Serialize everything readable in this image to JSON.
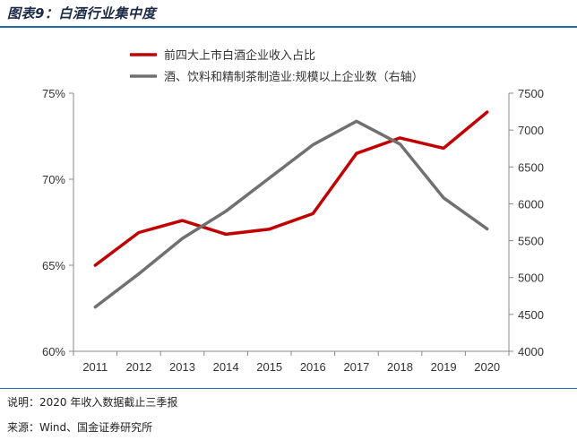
{
  "header": {
    "title": "图表9：白酒行业集中度"
  },
  "footer": {
    "note": "说明：2020 年收入数据截止三季报",
    "source": "来源：Wind、国金证券研究所"
  },
  "colors": {
    "series1": "#c00000",
    "series2": "#707070",
    "axis": "#888888",
    "rule": "#1f6bb5"
  },
  "chart_data": {
    "type": "line",
    "categories": [
      "2011",
      "2012",
      "2013",
      "2014",
      "2015",
      "2016",
      "2017",
      "2018",
      "2019",
      "2020"
    ],
    "y_left": {
      "ylim": [
        60,
        75
      ],
      "ticks": [
        "60%",
        "65%",
        "70%",
        "75%"
      ],
      "tick_values": [
        60,
        65,
        70,
        75
      ]
    },
    "y_right": {
      "ylim": [
        4000,
        7500
      ],
      "ticks": [
        "4000",
        "4500",
        "5000",
        "5500",
        "6000",
        "6500",
        "7000",
        "7500"
      ],
      "tick_values": [
        4000,
        4500,
        5000,
        5500,
        6000,
        6500,
        7000,
        7500
      ]
    },
    "series": [
      {
        "name": "前四大上市白酒企业收入占比",
        "axis": "left",
        "color": "#c00000",
        "values": [
          65.0,
          66.9,
          67.6,
          66.8,
          67.1,
          68.0,
          71.5,
          72.4,
          71.8,
          73.9
        ]
      },
      {
        "name": "酒、饮料和精制茶制造业:规模以上企业数（右轴）",
        "axis": "right",
        "color": "#707070",
        "values": [
          4600,
          5050,
          5530,
          5900,
          6350,
          6800,
          7120,
          6810,
          6080,
          5660
        ]
      }
    ]
  }
}
